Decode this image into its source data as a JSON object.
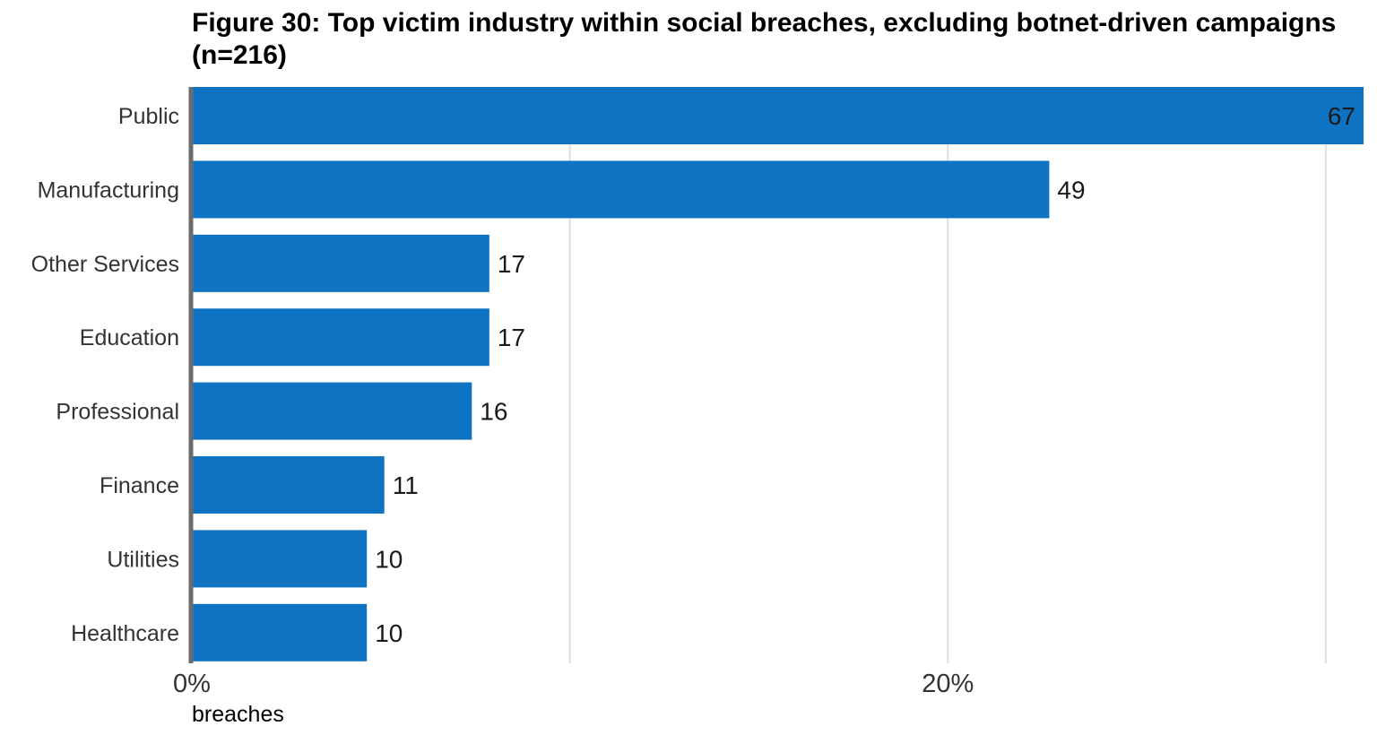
{
  "chart_data": {
    "type": "bar",
    "orientation": "horizontal",
    "title": "Figure 30: Top victim industry within social breaches, excluding botnet-driven campaigns (n=216)",
    "xlabel": "breaches",
    "ylabel": "",
    "categories": [
      "Public",
      "Manufacturing",
      "Other Services",
      "Education",
      "Professional",
      "Finance",
      "Utilities",
      "Healthcare"
    ],
    "values": [
      67,
      49,
      17,
      17,
      16,
      11,
      10,
      10
    ],
    "n": 216,
    "x_unit": "share of breaches",
    "xlim": [
      0,
      0.31
    ],
    "x_ticks": [
      {
        "value": 0.0,
        "label": "0%"
      },
      {
        "value": 0.2,
        "label": "20%"
      }
    ],
    "gridlines": [
      0.1,
      0.2,
      0.3
    ],
    "grid": true,
    "legend": "none",
    "bar_color": "#0f73c4",
    "axis_color": "#6b6b6b",
    "grid_color": "#dedede"
  }
}
